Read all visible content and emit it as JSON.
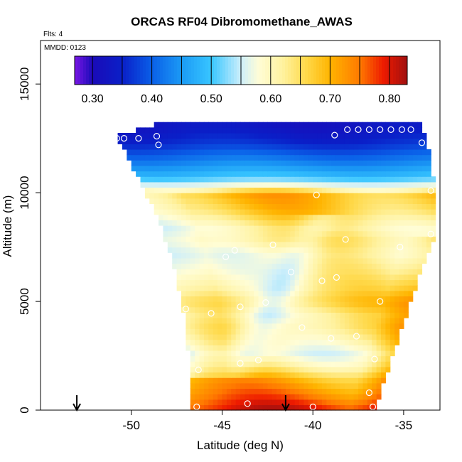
{
  "chart_data": {
    "type": "heatmap",
    "title": "ORCAS RF04 Dibromomethane_AWAS",
    "subtitle_flights": "Flts: 4",
    "subtitle_date": "MMDD: 0123",
    "xlabel": "Latitude (deg N)",
    "ylabel": "Altitude (m)",
    "xlim": [
      -55,
      -33
    ],
    "ylim": [
      0,
      17000
    ],
    "xticks": [
      -50,
      -45,
      -40,
      -35
    ],
    "xtick_labels": [
      "-50",
      "-45",
      "-40",
      "-35"
    ],
    "yticks": [
      0,
      5000,
      10000,
      15000
    ],
    "ytick_labels": [
      "0",
      "5000",
      "10000",
      "15000"
    ],
    "colorbar": {
      "min": 0.27,
      "max": 0.83,
      "ticks": [
        0.3,
        0.4,
        0.5,
        0.6,
        0.7,
        0.8
      ],
      "tick_labels": [
        "0.30",
        "0.40",
        "0.50",
        "0.60",
        "0.70",
        "0.80"
      ],
      "stops": [
        {
          "v": 0.27,
          "c": "#7a17e6"
        },
        {
          "v": 0.3,
          "c": "#1a0bb8"
        },
        {
          "v": 0.35,
          "c": "#0a1fc8"
        },
        {
          "v": 0.4,
          "c": "#0a5fe8"
        },
        {
          "v": 0.45,
          "c": "#1b9af5"
        },
        {
          "v": 0.5,
          "c": "#38c6ff"
        },
        {
          "v": 0.55,
          "c": "#cdeffb"
        },
        {
          "v": 0.58,
          "c": "#fffdd6"
        },
        {
          "v": 0.62,
          "c": "#fff2a0"
        },
        {
          "v": 0.66,
          "c": "#ffd94a"
        },
        {
          "v": 0.7,
          "c": "#ffb400"
        },
        {
          "v": 0.75,
          "c": "#ff7a00"
        },
        {
          "v": 0.79,
          "c": "#ee1a00"
        },
        {
          "v": 0.83,
          "c": "#a01010"
        }
      ]
    },
    "arrows_latitude": [
      -53,
      -41.5
    ],
    "envelope": [
      [
        13200,
        -48.5,
        -34
      ],
      [
        12600,
        -50.8,
        -33.8
      ],
      [
        12000,
        -50.4,
        -33.6
      ],
      [
        11000,
        -49.8,
        -33.4
      ],
      [
        10000,
        -49.2,
        -33.3
      ],
      [
        9000,
        -48.6,
        -33.3
      ],
      [
        8000,
        -48.2,
        -33.3
      ],
      [
        7000,
        -47.8,
        -33.8
      ],
      [
        6000,
        -47.5,
        -34.2
      ],
      [
        5000,
        -47.2,
        -34.6
      ],
      [
        4000,
        -47.0,
        -35.0
      ],
      [
        3000,
        -46.9,
        -35.4
      ],
      [
        2000,
        -46.8,
        -35.8
      ],
      [
        1000,
        -46.8,
        -36.2
      ],
      [
        0,
        -46.8,
        -36.5
      ]
    ],
    "field_profile": [
      [
        0,
        0.79
      ],
      [
        700,
        0.74
      ],
      [
        1400,
        0.7
      ],
      [
        2000,
        0.63
      ],
      [
        2600,
        0.59
      ],
      [
        3200,
        0.62
      ],
      [
        3800,
        0.64
      ],
      [
        4400,
        0.63
      ],
      [
        5000,
        0.66
      ],
      [
        5600,
        0.63
      ],
      [
        6400,
        0.61
      ],
      [
        7200,
        0.6
      ],
      [
        7800,
        0.63
      ],
      [
        8400,
        0.62
      ],
      [
        9200,
        0.67
      ],
      [
        9900,
        0.69
      ],
      [
        10300,
        0.58
      ],
      [
        10700,
        0.5
      ],
      [
        11200,
        0.45
      ],
      [
        11800,
        0.4
      ],
      [
        12300,
        0.36
      ],
      [
        13000,
        0.33
      ]
    ],
    "samples": [
      {
        "lat": -50.8,
        "alt": 12500
      },
      {
        "lat": -50.4,
        "alt": 12500
      },
      {
        "lat": -49.6,
        "alt": 12500
      },
      {
        "lat": -48.6,
        "alt": 12600
      },
      {
        "lat": -48.5,
        "alt": 12200
      },
      {
        "lat": -38.8,
        "alt": 12650
      },
      {
        "lat": -38.1,
        "alt": 12900
      },
      {
        "lat": -37.5,
        "alt": 12900
      },
      {
        "lat": -36.9,
        "alt": 12900
      },
      {
        "lat": -36.3,
        "alt": 12900
      },
      {
        "lat": -35.7,
        "alt": 12900
      },
      {
        "lat": -35.1,
        "alt": 12900
      },
      {
        "lat": -34.6,
        "alt": 12900
      },
      {
        "lat": -34.0,
        "alt": 12300
      },
      {
        "lat": -33.5,
        "alt": 10100
      },
      {
        "lat": -39.8,
        "alt": 9900
      },
      {
        "lat": -33.5,
        "alt": 8100
      },
      {
        "lat": -38.2,
        "alt": 7850
      },
      {
        "lat": -35.2,
        "alt": 7500
      },
      {
        "lat": -42.2,
        "alt": 7600
      },
      {
        "lat": -44.3,
        "alt": 7350
      },
      {
        "lat": -44.8,
        "alt": 7050
      },
      {
        "lat": -41.2,
        "alt": 6350
      },
      {
        "lat": -39.5,
        "alt": 5950
      },
      {
        "lat": -38.7,
        "alt": 6100
      },
      {
        "lat": -42.6,
        "alt": 4950
      },
      {
        "lat": -44.0,
        "alt": 4750
      },
      {
        "lat": -45.6,
        "alt": 4450
      },
      {
        "lat": -47.0,
        "alt": 4650
      },
      {
        "lat": -36.3,
        "alt": 5000
      },
      {
        "lat": -40.6,
        "alt": 3800
      },
      {
        "lat": -39.0,
        "alt": 3300
      },
      {
        "lat": -37.6,
        "alt": 3400
      },
      {
        "lat": -43.0,
        "alt": 2300
      },
      {
        "lat": -44.0,
        "alt": 2150
      },
      {
        "lat": -36.6,
        "alt": 2350
      },
      {
        "lat": -46.3,
        "alt": 1850
      },
      {
        "lat": -36.9,
        "alt": 800
      },
      {
        "lat": -43.6,
        "alt": 300
      },
      {
        "lat": -46.4,
        "alt": 150
      },
      {
        "lat": -40.0,
        "alt": 150
      },
      {
        "lat": -36.7,
        "alt": 150
      }
    ]
  }
}
